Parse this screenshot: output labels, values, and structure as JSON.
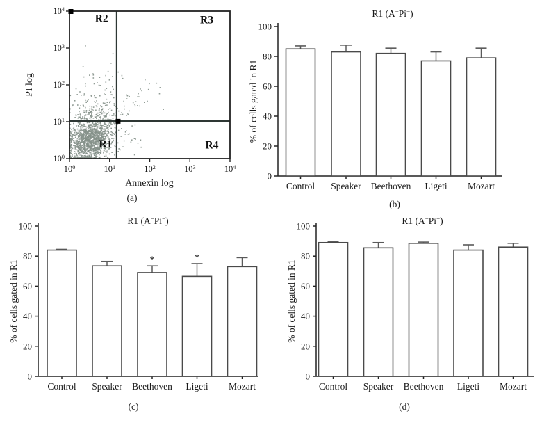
{
  "figure": {
    "type": "multi-panel-scientific-figure",
    "background": "#ffffff"
  },
  "panels": {
    "a": {
      "caption": "(a)"
    },
    "b": {
      "caption": "(b)"
    },
    "c": {
      "caption": "(c)"
    },
    "d": {
      "caption": "(d)"
    }
  },
  "colors": {
    "axis": "#222222",
    "text": "#1a1a1a",
    "bar_fill": "#ffffff",
    "bar_stroke": "#4a4a4a",
    "error_bar": "#5a5a5a",
    "scatter_points": "#85918a",
    "gate_line": "#2e3734",
    "gate_marker": "#000000"
  },
  "chart_data": [
    {
      "panel": "a",
      "type": "scatter",
      "title": "",
      "xlabel": "Annexin log",
      "ylabel": "PI log",
      "x_scale": "log",
      "y_scale": "log",
      "xlim": [
        1,
        10000
      ],
      "ylim": [
        1,
        10000
      ],
      "tick_base": "10",
      "x_tick_exponents": [
        0,
        1,
        2,
        3,
        4
      ],
      "y_tick_exponents": [
        0,
        1,
        2,
        3,
        4
      ],
      "grid": false,
      "gate_x": 15,
      "gate_y": 10.5,
      "gate_markers": [
        {
          "x": 1,
          "y": 10000
        },
        {
          "x": 15,
          "y": 10.5
        }
      ],
      "quadrant_labels": [
        {
          "text": "R2",
          "log_x": 0.8,
          "log_y": 3.8
        },
        {
          "text": "R3",
          "log_x": 3.42,
          "log_y": 3.76
        },
        {
          "text": "R1",
          "log_x": 0.9,
          "log_y": 0.4
        },
        {
          "text": "R4",
          "log_x": 3.55,
          "log_y": 0.37
        }
      ],
      "point_clusters": [
        {
          "n": 1350,
          "cx": 0.52,
          "cy": 0.5,
          "sx": 0.28,
          "sy": 0.3,
          "corr": 0.25
        },
        {
          "n": 220,
          "cx": 0.6,
          "cy": 1.15,
          "sx": 0.32,
          "sy": 0.28,
          "corr": 0.1
        },
        {
          "n": 45,
          "cx": 0.72,
          "cy": 2.05,
          "sx": 0.33,
          "sy": 0.45,
          "corr": 0.0
        },
        {
          "n": 40,
          "cx": 1.35,
          "cy": 1.3,
          "sx": 0.38,
          "sy": 0.36,
          "corr": 0.85
        },
        {
          "n": 18,
          "cx": 1.5,
          "cy": 0.55,
          "sx": 0.28,
          "sy": 0.27,
          "corr": 0.2
        },
        {
          "n": 6,
          "cx": 2.3,
          "cy": 1.8,
          "sx": 0.4,
          "sy": 0.35,
          "corr": 0.5
        }
      ],
      "seed": 1234
    },
    {
      "panel": "b",
      "type": "bar",
      "title": "R1 (A⁻Pi⁻)",
      "title_parts": [
        {
          "t": "R1 (A"
        },
        {
          "t": "−",
          "sup": true
        },
        {
          "t": "Pi"
        },
        {
          "t": "−",
          "sup": true
        },
        {
          "t": ")"
        }
      ],
      "categories": [
        "Control",
        "Speaker",
        "Beethoven",
        "Ligeti",
        "Mozart"
      ],
      "values": [
        85,
        83,
        82,
        77,
        79
      ],
      "errors_up": [
        2,
        4.5,
        3.5,
        6,
        6.5
      ],
      "significance": [
        "",
        "",
        "",
        "",
        ""
      ],
      "ylabel": "% of cells gated in R1",
      "xlabel": "",
      "ylim": [
        0,
        100
      ],
      "yticks": [
        0,
        20,
        40,
        60,
        80,
        100
      ],
      "grid": false
    },
    {
      "panel": "c",
      "type": "bar",
      "title": "R1 (A⁻Pi⁻)",
      "title_parts": [
        {
          "t": "R1 (A"
        },
        {
          "t": "−",
          "sup": true
        },
        {
          "t": "Pi"
        },
        {
          "t": "−",
          "sup": true
        },
        {
          "t": ")"
        }
      ],
      "categories": [
        "Control",
        "Speaker",
        "Beethoven",
        "Ligeti",
        "Mozart"
      ],
      "values": [
        84,
        73.5,
        69,
        66.5,
        73
      ],
      "errors_up": [
        0.5,
        3,
        4.5,
        8.5,
        6
      ],
      "significance": [
        "",
        "",
        "*",
        "*",
        ""
      ],
      "ylabel": "% of cells gated in R1",
      "xlabel": "",
      "ylim": [
        0,
        100
      ],
      "yticks": [
        0,
        20,
        40,
        60,
        80,
        100
      ],
      "grid": false
    },
    {
      "panel": "d",
      "type": "bar",
      "title": "R1 (A⁻Pi⁻)",
      "title_parts": [
        {
          "t": "R1 (A"
        },
        {
          "t": "−",
          "sup": true
        },
        {
          "t": "Pi"
        },
        {
          "t": "−",
          "sup": true
        },
        {
          "t": ")"
        }
      ],
      "categories": [
        "Control",
        "Speaker",
        "Beethoven",
        "Ligeti",
        "Mozart"
      ],
      "values": [
        89,
        85.5,
        88.5,
        84,
        86
      ],
      "errors_up": [
        0.5,
        3.5,
        0.8,
        3.5,
        2.5
      ],
      "significance": [
        "",
        "",
        "",
        "",
        ""
      ],
      "ylabel": "% of cells gated in R1",
      "xlabel": "",
      "ylim": [
        0,
        100
      ],
      "yticks": [
        0,
        20,
        40,
        60,
        80,
        100
      ],
      "grid": false
    }
  ]
}
